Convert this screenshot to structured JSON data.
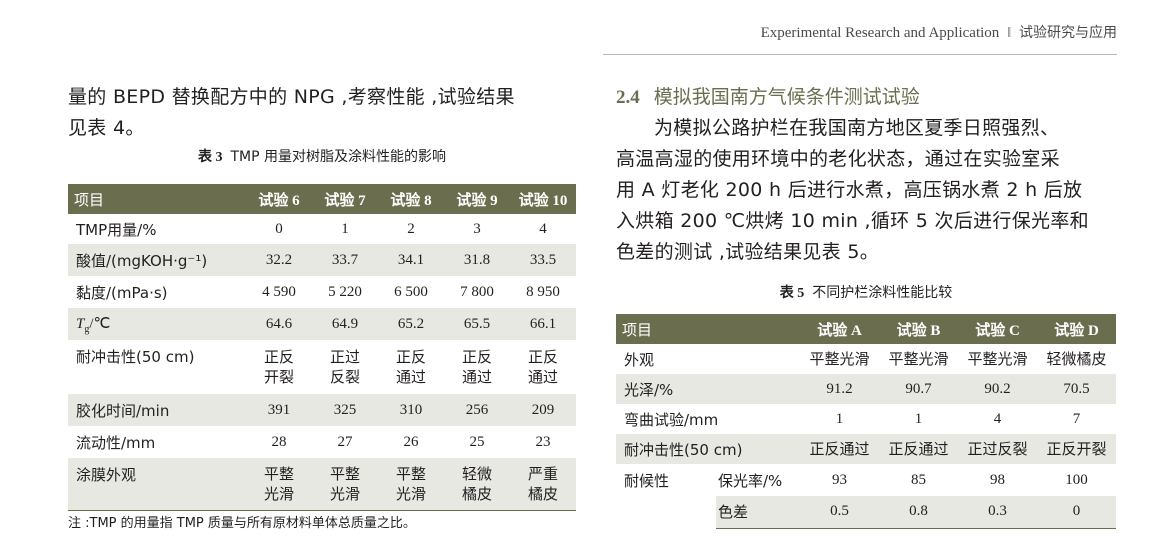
{
  "running_head": {
    "english": "Experimental Research and Application",
    "separator": "‖",
    "chinese": "试验研究与应用"
  },
  "left_column": {
    "paragraph_line1": "量的 BEPD 替换配方中的 NPG ,考察性能 ,试验结果",
    "paragraph_line2": "见表 4。",
    "table3": {
      "number": "表 3",
      "caption": "TMP 用量对树脂及涂料性能的影响",
      "headers": [
        "项目",
        "试验 6",
        "试验 7",
        "试验 8",
        "试验 9",
        "试验 10"
      ],
      "rows": [
        {
          "label": "TMP用量/%",
          "values": [
            "0",
            "1",
            "2",
            "3",
            "4"
          ]
        },
        {
          "label": "酸值/(mgKOH·g⁻¹)",
          "values": [
            "32.2",
            "33.7",
            "34.1",
            "31.8",
            "33.5"
          ]
        },
        {
          "label": "黏度/(mPa·s)",
          "values": [
            "4 590",
            "5 220",
            "6 500",
            "7 800",
            "8 950"
          ]
        },
        {
          "label_main": "T",
          "label_sub": "g",
          "label_rest": "/℃",
          "values": [
            "64.6",
            "64.9",
            "65.2",
            "65.5",
            "66.1"
          ]
        },
        {
          "label": "耐冲击性(50 cm)",
          "values": [
            [
              "正反",
              "开裂"
            ],
            [
              "正过",
              "反裂"
            ],
            [
              "正反",
              "通过"
            ],
            [
              "正反",
              "通过"
            ],
            [
              "正反",
              "通过"
            ]
          ]
        },
        {
          "label": "胶化时间/min",
          "values": [
            "391",
            "325",
            "310",
            "256",
            "209"
          ]
        },
        {
          "label": "流动性/mm",
          "values": [
            "28",
            "27",
            "26",
            "25",
            "23"
          ]
        },
        {
          "label": "涂膜外观",
          "values": [
            [
              "平整",
              "光滑"
            ],
            [
              "平整",
              "光滑"
            ],
            [
              "平整",
              "光滑"
            ],
            [
              "轻微",
              "橘皮"
            ],
            [
              "严重",
              "橘皮"
            ]
          ]
        }
      ],
      "note": "注 :TMP 的用量指 TMP 质量与所有原材料单体总质量之比。"
    }
  },
  "right_column": {
    "section_number": "2.4",
    "section_title": "模拟我国南方气候条件测试试验",
    "paragraph_lines": [
      "为模拟公路护栏在我国南方地区夏季日照强烈、",
      "高温高湿的使用环境中的老化状态，通过在实验室采",
      "用 A 灯老化 200 h 后进行水煮，高压锅水煮 2 h 后放",
      "入烘箱 200 ℃烘烤 10 min ,循环 5 次后进行保光率和",
      "色差的测试 ,试验结果见表 5。"
    ],
    "table5": {
      "number": "表 5",
      "caption": "不同护栏涂料性能比较",
      "headers": [
        "项目",
        "试验 A",
        "试验 B",
        "试验 C",
        "试验 D"
      ],
      "rows": [
        {
          "label": "外观",
          "values": [
            "平整光滑",
            "平整光滑",
            "平整光滑",
            "轻微橘皮"
          ]
        },
        {
          "label": "光泽/%",
          "values": [
            "91.2",
            "90.7",
            "90.2",
            "70.5"
          ]
        },
        {
          "label": "弯曲试验/mm",
          "values": [
            "1",
            "1",
            "4",
            "7"
          ]
        },
        {
          "label": "耐冲击性(50 cm)",
          "values": [
            "正反通过",
            "正反通过",
            "正过反裂",
            "正反开裂"
          ]
        },
        {
          "group": "耐候性",
          "label": "保光率/%",
          "values": [
            "93",
            "85",
            "98",
            "100"
          ]
        },
        {
          "label": "色差",
          "values": [
            "0.5",
            "0.8",
            "0.3",
            "0"
          ]
        }
      ]
    }
  },
  "colors": {
    "header_fill": "#6b6e4e",
    "row_shade": "#e7e8e2",
    "heading_text": "#6b6e4e"
  }
}
